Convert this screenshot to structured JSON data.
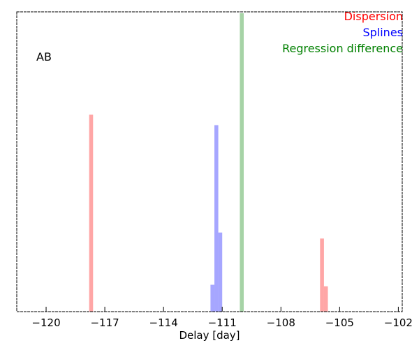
{
  "chart_data": {
    "type": "bar",
    "xlabel": "Delay [day]",
    "ylabel": "",
    "xlim": [
      -121.5,
      -101.8
    ],
    "ylim": [
      0,
      1
    ],
    "xticks": [
      -120,
      -117,
      -114,
      -111,
      -108,
      -105,
      -102
    ],
    "xtick_labels": [
      "−120",
      "−117",
      "−114",
      "−111",
      "−108",
      "−105",
      "−102"
    ],
    "annotation": "AB",
    "legend_position": "top-right",
    "series": [
      {
        "name": "Dispersion",
        "color": "#ff0000",
        "bins": [
          {
            "x0": -117.8,
            "x1": -117.6,
            "y": 0.66
          },
          {
            "x0": -106.0,
            "x1": -105.8,
            "y": 0.245
          },
          {
            "x0": -105.8,
            "x1": -105.6,
            "y": 0.085
          }
        ]
      },
      {
        "name": "Splines",
        "color": "#0000ff",
        "bins": [
          {
            "x0": -111.6,
            "x1": -111.4,
            "y": 0.09
          },
          {
            "x0": -111.4,
            "x1": -111.2,
            "y": 0.625
          },
          {
            "x0": -111.2,
            "x1": -111.0,
            "y": 0.265
          }
        ]
      },
      {
        "name": "Regression difference",
        "color": "#008000",
        "bins": [
          {
            "x0": -110.1,
            "x1": -109.9,
            "y": 1.0
          }
        ]
      }
    ]
  }
}
